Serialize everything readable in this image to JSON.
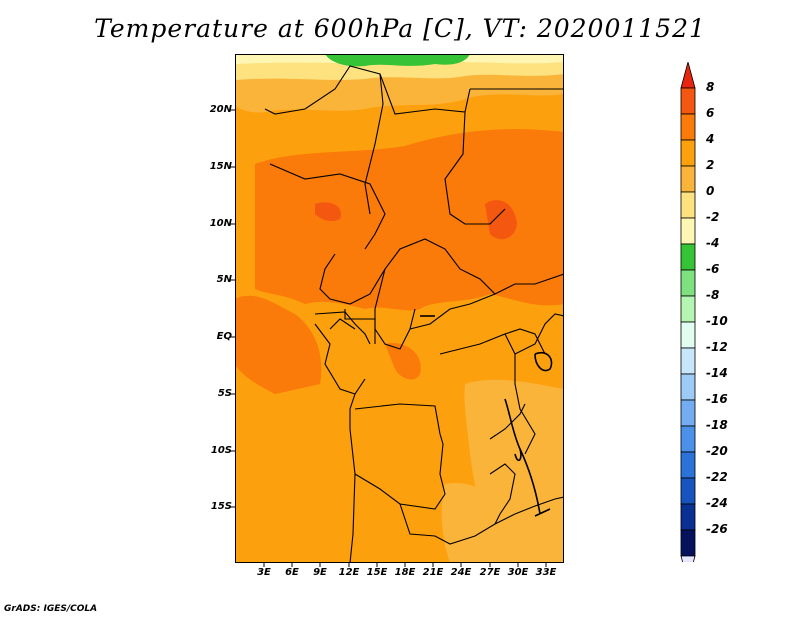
{
  "title": "Temperature at 600hPa [C], VT: 2020011521",
  "credit": "GrADS: IGES/COLA",
  "y_ticks": [
    "20N",
    "15N",
    "10N",
    "5N",
    "EQ",
    "5S",
    "10S",
    "15S"
  ],
  "x_ticks": [
    "3E",
    "6E",
    "9E",
    "12E",
    "15E",
    "18E",
    "21E",
    "24E",
    "27E",
    "30E",
    "33E"
  ],
  "colorbar": {
    "labels": [
      "8",
      "6",
      "4",
      "2",
      "0",
      "-2",
      "-4",
      "-6",
      "-8",
      "-10",
      "-12",
      "-14",
      "-16",
      "-18",
      "-20",
      "-22",
      "-24",
      "-26"
    ],
    "colors": [
      "#e8250f",
      "#f4570f",
      "#fa7a0a",
      "#fca00d",
      "#fbb43a",
      "#fde27f",
      "#fff6b4",
      "#36c336",
      "#7ee07e",
      "#b4f5b4",
      "#e1fcf1",
      "#c8e6fa",
      "#9ccbf6",
      "#73acf1",
      "#4b91ea",
      "#2b72d9",
      "#1854bf",
      "#0b3094",
      "#06125c",
      "#e6e6ff"
    ]
  },
  "map": {
    "variable": "Temperature at 600hPa",
    "units": "C",
    "valid_time": "2020011521",
    "lon_range_deg": [
      0,
      35
    ],
    "lat_range_deg": [
      -20,
      24.5
    ]
  }
}
